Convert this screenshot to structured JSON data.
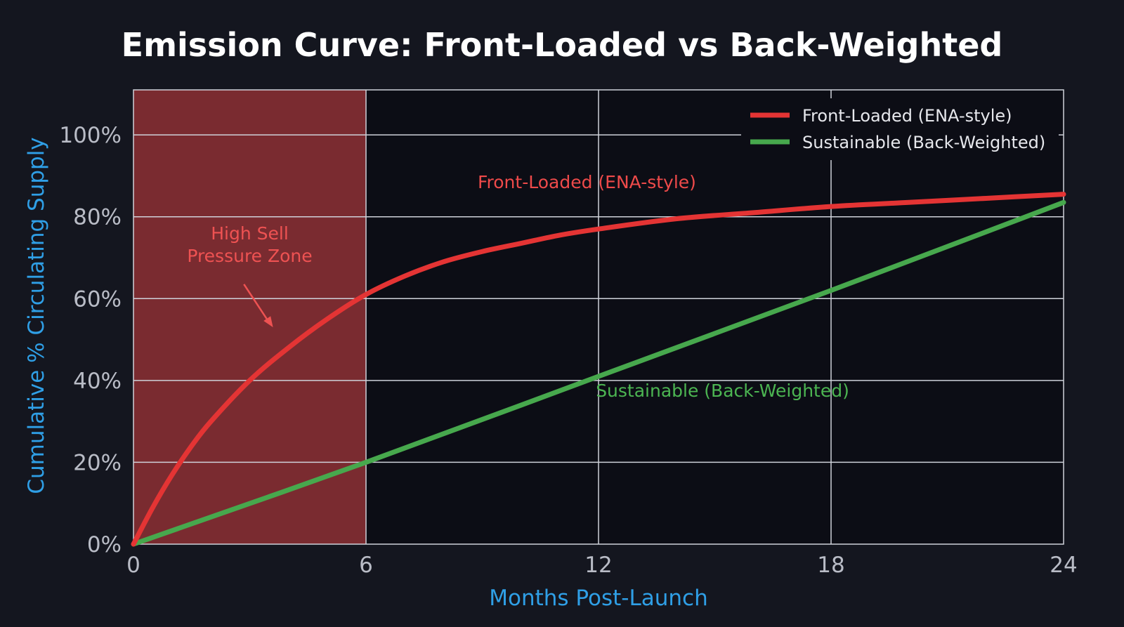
{
  "chart_data": {
    "type": "line",
    "title": "Emission Curve: Front-Loaded vs Back-Weighted",
    "xlabel": "Months Post-Launch",
    "ylabel": "Cumulative % Circulating Supply",
    "xlim": [
      0,
      24
    ],
    "ylim": [
      0,
      111
    ],
    "x_ticks": [
      "0",
      "6",
      "12",
      "18",
      "24"
    ],
    "x_tick_values": [
      0,
      6,
      12,
      18,
      24
    ],
    "y_ticks": [
      "0%",
      "20%",
      "40%",
      "60%",
      "80%",
      "100%"
    ],
    "y_tick_values": [
      0,
      20,
      40,
      60,
      80,
      100
    ],
    "grid": true,
    "legend_position": "top-right",
    "series": [
      {
        "name": "Front-Loaded (ENA-style)",
        "color": "#e43434",
        "x": [
          0,
          0.5,
          1,
          1.5,
          2,
          3,
          4,
          5,
          6,
          7,
          8,
          9,
          10,
          11,
          12,
          14,
          16,
          18,
          20,
          22,
          24
        ],
        "values": [
          0,
          9,
          17,
          24,
          30,
          40,
          48,
          55,
          61,
          65.5,
          69,
          71.5,
          73.5,
          75.5,
          77,
          79.5,
          81,
          82.5,
          83.5,
          84.5,
          85.5
        ]
      },
      {
        "name": "Sustainable (Back-Weighted)",
        "color": "#47a84d",
        "x": [
          0,
          6,
          12,
          18,
          24
        ],
        "values": [
          0,
          20,
          41,
          62,
          83.5
        ]
      }
    ],
    "shaded_region": {
      "x_start": 0,
      "x_end": 6,
      "label_lines": [
        "High Sell",
        "Pressure Zone"
      ],
      "color": "#7a2b30",
      "arrow_target": {
        "x": 3.6,
        "y": 53
      }
    },
    "annotations": [
      {
        "text": "Front-Loaded (ENA-style)",
        "series": 0,
        "x": 11.7,
        "y": 87
      },
      {
        "text": "Sustainable (Back-Weighted)",
        "series": 1,
        "x": 15.2,
        "y": 36
      }
    ],
    "colors": {
      "background": "#14161f",
      "plot_background": "#0c0d15",
      "grid": "#cfd2da",
      "axis_label": "#2f9fe6",
      "title": "#ffffff",
      "ticks": "#b9bcc6"
    }
  }
}
